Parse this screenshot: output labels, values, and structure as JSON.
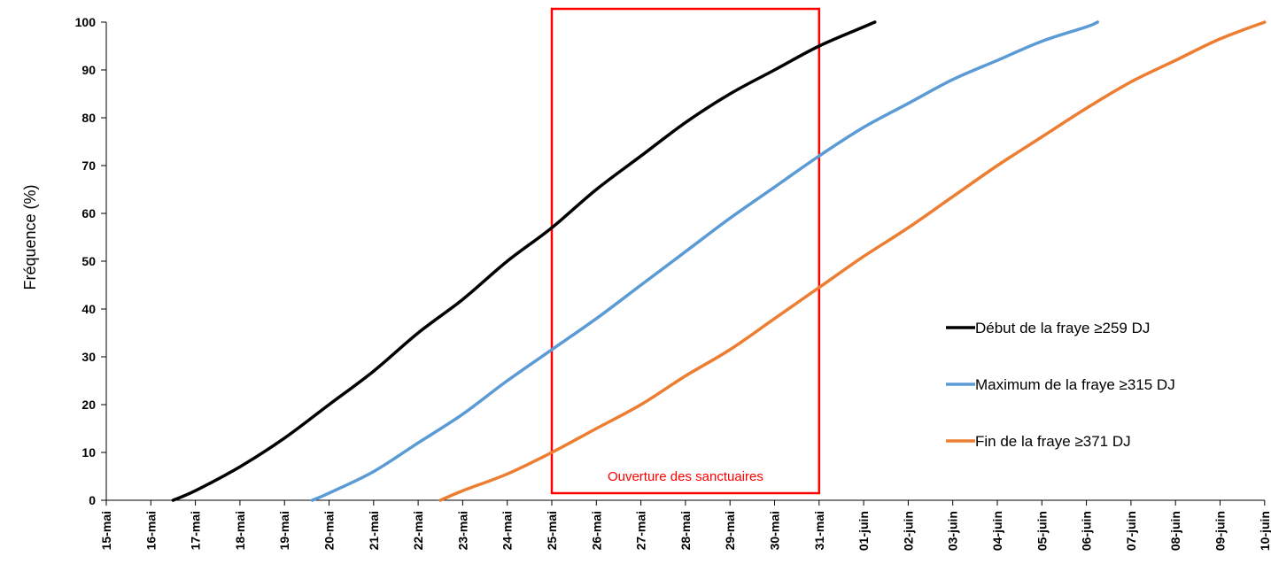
{
  "chart_data": {
    "type": "line",
    "title": "",
    "xlabel": "",
    "ylabel": "Fréquence (%)",
    "ylim": [
      0,
      100
    ],
    "yticks": [
      "0",
      "10",
      "20",
      "30",
      "40",
      "50",
      "60",
      "70",
      "80",
      "90",
      "100"
    ],
    "x_categories": [
      "15-mai",
      "16-mai",
      "17-mai",
      "18-mai",
      "19-mai",
      "20-mai",
      "21-mai",
      "22-mai",
      "23-mai",
      "24-mai",
      "25-mai",
      "26-mai",
      "27-mai",
      "28-mai",
      "29-mai",
      "30-mai",
      "31-mai",
      "01-juin",
      "02-juin",
      "03-juin",
      "04-juin",
      "05-juin",
      "06-juin",
      "07-juin",
      "08-juin",
      "09-juin",
      "10-juin"
    ],
    "grid": false,
    "legend_position": "right",
    "series": [
      {
        "name": "Début de la fraye ≥259 DJ",
        "color": "#000000",
        "x": [
          "16-mai 12h",
          "17-mai",
          "18-mai",
          "19-mai",
          "20-mai",
          "21-mai",
          "22-mai",
          "23-mai",
          "24-mai",
          "25-mai",
          "26-mai",
          "27-mai",
          "28-mai",
          "29-mai",
          "30-mai",
          "31-mai",
          "01-juin",
          "01-juin 06h"
        ],
        "values": [
          0,
          2,
          7,
          13,
          20,
          27,
          35,
          42,
          50,
          57,
          65,
          72,
          79,
          85,
          90,
          95,
          99,
          100
        ]
      },
      {
        "name": "Maximum de la fraye ≥315 DJ",
        "color": "#5b9bd5",
        "x": [
          "19-mai 15h",
          "20-mai",
          "21-mai",
          "22-mai",
          "23-mai",
          "24-mai",
          "25-mai",
          "26-mai",
          "27-mai",
          "28-mai",
          "29-mai",
          "30-mai",
          "31-mai",
          "01-juin",
          "02-juin",
          "03-juin",
          "04-juin",
          "05-juin",
          "06-juin",
          "06-juin 06h"
        ],
        "values": [
          0,
          1.5,
          6,
          12,
          18,
          25,
          31.5,
          38,
          45,
          52,
          59,
          65.5,
          72,
          78,
          83,
          88,
          92,
          96,
          99,
          100
        ]
      },
      {
        "name": "Fin de la fraye ≥371 DJ",
        "color": "#ed7d31",
        "x": [
          "22-mai 12h",
          "23-mai",
          "24-mai",
          "25-mai",
          "26-mai",
          "27-mai",
          "28-mai",
          "29-mai",
          "30-mai",
          "31-mai",
          "01-juin",
          "02-juin",
          "03-juin",
          "04-juin",
          "05-juin",
          "06-juin",
          "07-juin",
          "08-juin",
          "09-juin",
          "10-juin"
        ],
        "values": [
          0,
          2,
          5.5,
          10,
          15,
          20,
          26,
          31.5,
          38,
          44.5,
          51,
          57,
          63.5,
          70,
          76,
          82,
          87.5,
          92,
          96.5,
          100
        ]
      }
    ],
    "annotation": {
      "text": "Ouverture des sanctuaires",
      "x_start": "25-mai",
      "x_end": "31-mai",
      "color": "#ff0000"
    }
  }
}
